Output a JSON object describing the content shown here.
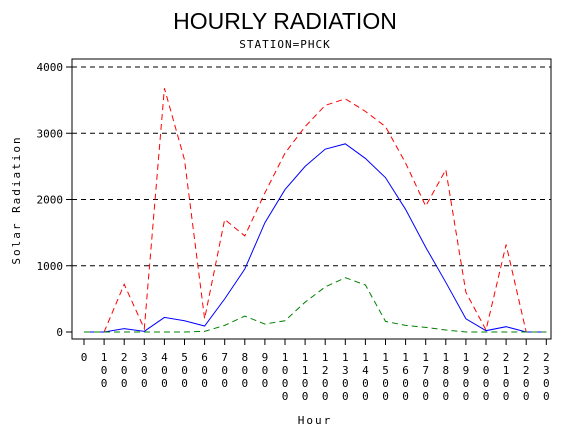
{
  "chart_data": {
    "type": "line",
    "title": "HOURLY RADIATION",
    "subtitle": "STATION=PHCK",
    "xlabel": "Hour",
    "ylabel": "Solar Radiation",
    "ylim": [
      0,
      4000
    ],
    "yticks": [
      "0",
      "1000",
      "2000",
      "3000",
      "4000"
    ],
    "grid": "horizontal dashed",
    "x": [
      0,
      100,
      200,
      300,
      400,
      500,
      600,
      700,
      800,
      900,
      1000,
      1100,
      1200,
      1300,
      1400,
      1500,
      1600,
      1700,
      1800,
      1900,
      2000,
      2100,
      2200,
      2300
    ],
    "x_tick_labels": [
      "0",
      "100",
      "200",
      "300",
      "400",
      "500",
      "600",
      "700",
      "800",
      "900",
      "1000",
      "1100",
      "1200",
      "1300",
      "1400",
      "1500",
      "1600",
      "1700",
      "1800",
      "1900",
      "2000",
      "2100",
      "2200",
      "2300"
    ],
    "series": [
      {
        "color": "#ff0000",
        "dash": "dashed",
        "values": [
          0,
          0,
          720,
          50,
          3680,
          2600,
          200,
          1700,
          1450,
          2100,
          2700,
          3100,
          3420,
          3520,
          3330,
          3100,
          2550,
          1900,
          2450,
          600,
          30,
          1320,
          0,
          0
        ]
      },
      {
        "color": "#0000ff",
        "dash": "solid",
        "values": [
          0,
          0,
          50,
          10,
          220,
          170,
          90,
          500,
          950,
          1650,
          2150,
          2500,
          2760,
          2840,
          2620,
          2330,
          1850,
          1280,
          750,
          200,
          20,
          80,
          0,
          0
        ]
      },
      {
        "color": "#008000",
        "dash": "dashed",
        "values": [
          0,
          0,
          0,
          0,
          0,
          0,
          10,
          100,
          240,
          120,
          170,
          450,
          680,
          820,
          710,
          160,
          100,
          70,
          30,
          0,
          0,
          0,
          0,
          0
        ]
      }
    ]
  }
}
